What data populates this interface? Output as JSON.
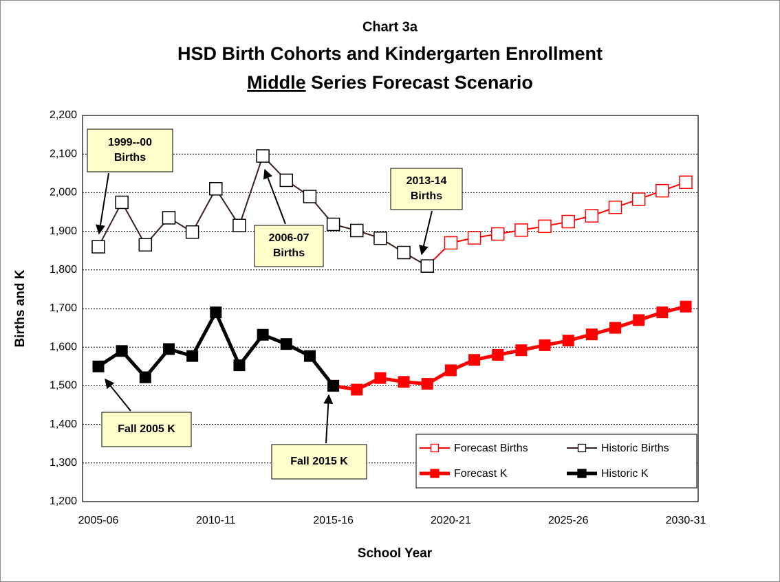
{
  "chart_data": {
    "type": "line",
    "title": "Chart 3a",
    "subtitle": "HSD Birth Cohorts and Kindergarten Enrollment",
    "subtitle2": {
      "underlined": "Middle",
      "rest": "Series Forecast Scenario"
    },
    "y_label": "Births and K",
    "x_label": "School Year",
    "categories": [
      "2005-06",
      null,
      null,
      null,
      null,
      "2010-11",
      null,
      null,
      null,
      null,
      "2015-16",
      null,
      null,
      null,
      null,
      "2020-21",
      null,
      null,
      null,
      null,
      "2025-26",
      null,
      null,
      null,
      null,
      "2030-31"
    ],
    "ylim": [
      1200,
      2200
    ],
    "yticks": [
      {
        "value": 1200,
        "label": "1,200"
      },
      {
        "value": 1300,
        "label": "1,300"
      },
      {
        "value": 1400,
        "label": "1,400"
      },
      {
        "value": 1500,
        "label": "1,500"
      },
      {
        "value": 1600,
        "label": "1,600"
      },
      {
        "value": 1700,
        "label": "1,700"
      },
      {
        "value": 1800,
        "label": "1,800"
      },
      {
        "value": 1900,
        "label": "1,900"
      },
      {
        "value": 2000,
        "label": "2,000"
      },
      {
        "value": 2100,
        "label": "2,100"
      },
      {
        "value": 2200,
        "label": "2,200"
      }
    ],
    "grid": true,
    "series": [
      {
        "name": "Forecast Births",
        "color": "#ff0000",
        "marker": "open",
        "line_width": 2,
        "values": [
          null,
          null,
          null,
          null,
          null,
          null,
          null,
          null,
          null,
          null,
          null,
          null,
          null,
          null,
          1810,
          1870,
          1883,
          1893,
          1903,
          1913,
          1925,
          1940,
          1962,
          1983,
          2005,
          2027
        ]
      },
      {
        "name": "Historic Births",
        "color": "#3a1f1f",
        "marker": "open",
        "line_width": 2,
        "values": [
          1860,
          1975,
          1865,
          1935,
          1898,
          2010,
          1915,
          2095,
          2032,
          1990,
          1918,
          1902,
          1882,
          1845,
          1810,
          null,
          null,
          null,
          null,
          null,
          null,
          null,
          null,
          null,
          null,
          null
        ]
      },
      {
        "name": "Forecast K",
        "color": "#ff0000",
        "marker": "filled",
        "line_width": 5,
        "values": [
          null,
          null,
          null,
          null,
          null,
          null,
          null,
          null,
          null,
          null,
          1500,
          1490,
          1520,
          1510,
          1505,
          1540,
          1567,
          1580,
          1592,
          1605,
          1617,
          1633,
          1650,
          1670,
          1690,
          1705
        ]
      },
      {
        "name": "Historic K",
        "color": "#000000",
        "marker": "filled",
        "line_width": 5,
        "values": [
          1550,
          1590,
          1522,
          1595,
          1577,
          1690,
          1553,
          1632,
          1608,
          1577,
          1500,
          null,
          null,
          null,
          null,
          null,
          null,
          null,
          null,
          null,
          null,
          null,
          null,
          null,
          null,
          null
        ]
      }
    ],
    "annotations": [
      {
        "lines": [
          "1999--00",
          "Births"
        ]
      },
      {
        "lines": [
          "2006-07",
          "Births"
        ]
      },
      {
        "lines": [
          "2013-14",
          "Births"
        ]
      },
      {
        "lines": [
          "Fall 2005 K"
        ]
      },
      {
        "lines": [
          "Fall 2015 K"
        ]
      }
    ]
  }
}
